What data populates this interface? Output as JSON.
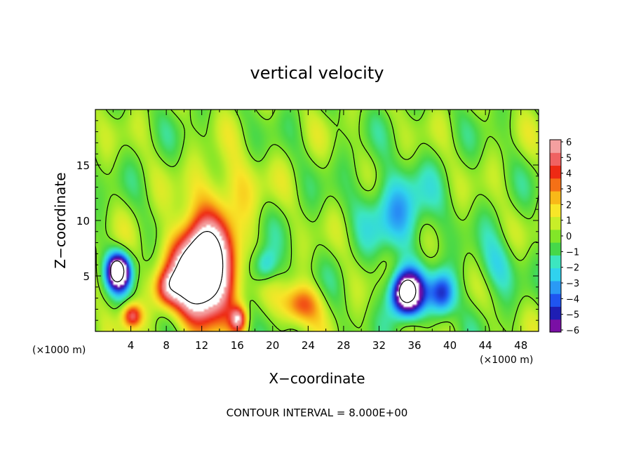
{
  "chart_data": {
    "type": "heatmap",
    "title": "vertical velocity",
    "xlabel": "X−coordinate",
    "ylabel": "Z−coordinate",
    "x_units": "(×1000 m)",
    "z_units": "(×1000 m)",
    "xlim": [
      0,
      50
    ],
    "ylim": [
      0,
      20
    ],
    "x_ticks": [
      "4",
      "8",
      "12",
      "16",
      "20",
      "24",
      "28",
      "32",
      "36",
      "40",
      "44",
      "48"
    ],
    "y_ticks": [
      "5",
      "10",
      "15"
    ],
    "colorbar": {
      "ticks": [
        "6",
        "5",
        "4",
        "3",
        "2",
        "1",
        "0",
        "−1",
        "−2",
        "−3",
        "−4",
        "−5",
        "−6"
      ],
      "range": [
        -6,
        6
      ],
      "colors": [
        "#7a0fa5",
        "#1e1eb4",
        "#1f55f0",
        "#2a9af5",
        "#30d2ee",
        "#3ce6c0",
        "#46d84a",
        "#82e628",
        "#c8ee28",
        "#f8e628",
        "#f8b818",
        "#f57016",
        "#ee2a14",
        "#f06262",
        "#f4a0a0"
      ]
    },
    "features": [
      {
        "kind": "updraft",
        "x": 12,
        "z": 5.5,
        "peak": 14
      },
      {
        "kind": "updraft",
        "x": 8,
        "z": 4,
        "peak": 4
      },
      {
        "kind": "updraft",
        "x": 4,
        "z": 1.5,
        "peak": 5
      },
      {
        "kind": "updraft",
        "x": 16,
        "z": 1.2,
        "peak": 5
      },
      {
        "kind": "updraft",
        "x": 23,
        "z": 2.5,
        "peak": 4
      },
      {
        "kind": "updraft",
        "x": 15,
        "z": 13,
        "peak": 2
      },
      {
        "kind": "downdraft",
        "x": 2.5,
        "z": 5.5,
        "peak": -10
      },
      {
        "kind": "downdraft",
        "x": 35,
        "z": 3.5,
        "peak": -10
      },
      {
        "kind": "downdraft",
        "x": 39,
        "z": 3.5,
        "peak": -5
      },
      {
        "kind": "downdraft",
        "x": 34,
        "z": 11,
        "peak": -3
      },
      {
        "kind": "downdraft",
        "x": 19,
        "z": 6,
        "peak": -3
      },
      {
        "kind": "downdraft",
        "x": 45,
        "z": 6,
        "peak": -2
      }
    ]
  },
  "footer": {
    "contour_interval": "CONTOUR INTERVAL = 8.000E+00"
  }
}
